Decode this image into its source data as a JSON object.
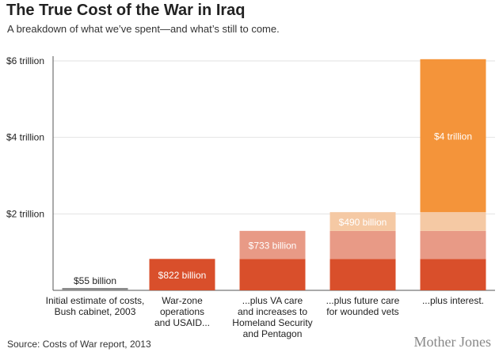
{
  "header": {
    "title": "The True Cost of the War in Iraq",
    "subtitle": "A breakdown of what we’ve spent—and what’s still to come."
  },
  "footer": {
    "source": "Source: Costs of War report, 2013",
    "brand": "Mother Jones"
  },
  "colors": {
    "gray": "#8c8c8c",
    "war_ops": "#d94f2b",
    "va_care": "#e89a86",
    "future_care": "#f5c9a4",
    "interest": "#f4943a",
    "axis": "#555555",
    "grid": "#e2e2e2"
  },
  "chart_data": {
    "type": "bar",
    "stacked": true,
    "unit": "trillion dollars",
    "ylim": [
      0,
      6
    ],
    "yticks": [
      {
        "value": 2,
        "label": "$2 trillion"
      },
      {
        "value": 4,
        "label": "$4 trillion"
      },
      {
        "value": 6,
        "label": "$6 trillion"
      }
    ],
    "grid": true,
    "categories": [
      {
        "lines": [
          "Initial estimate of costs,",
          "Bush cabinet, 2003"
        ]
      },
      {
        "lines": [
          "War-zone",
          "operations",
          "and USAID..."
        ]
      },
      {
        "lines": [
          "...plus VA care",
          "and increases to",
          "Homeland Security",
          "and Pentagon"
        ]
      },
      {
        "lines": [
          "...plus future care",
          "for wounded vets"
        ]
      },
      {
        "lines": [
          "...plus interest."
        ]
      }
    ],
    "segments": [
      {
        "color_key": "gray",
        "values": [
          0.055,
          0,
          0,
          0,
          0
        ],
        "labels": [
          "$55 billion",
          "",
          "",
          "",
          ""
        ],
        "label_style": "above"
      },
      {
        "color_key": "war_ops",
        "values": [
          0,
          0.822,
          0.822,
          0.822,
          0.822
        ],
        "labels": [
          "",
          "$822 billion",
          "",
          "",
          ""
        ],
        "label_style": "inside"
      },
      {
        "color_key": "va_care",
        "values": [
          0,
          0,
          0.733,
          0.733,
          0.733
        ],
        "labels": [
          "",
          "",
          "$733 billion",
          "",
          ""
        ],
        "label_style": "inside"
      },
      {
        "color_key": "future_care",
        "values": [
          0,
          0,
          0,
          0.49,
          0.49
        ],
        "labels": [
          "",
          "",
          "",
          "$490 billion",
          ""
        ],
        "label_style": "inside"
      },
      {
        "color_key": "interest",
        "values": [
          0,
          0,
          0,
          0,
          4
        ],
        "labels": [
          "",
          "",
          "",
          "",
          "$4 trillion"
        ],
        "label_style": "inside"
      }
    ]
  }
}
